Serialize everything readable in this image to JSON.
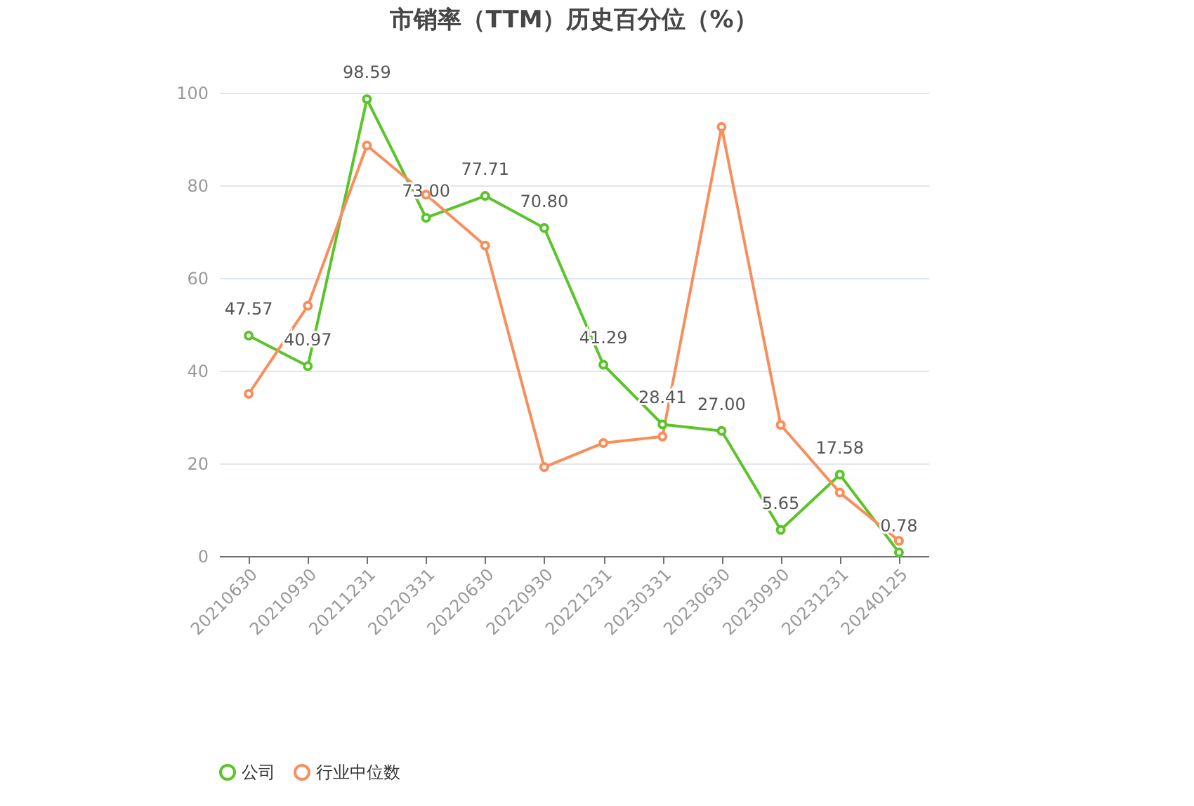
{
  "chart_data": {
    "type": "line",
    "title": "市销率（TTM）历史百分位（%）",
    "categories": [
      "20210630",
      "20210930",
      "20211231",
      "20220331",
      "20220630",
      "20220930",
      "20221231",
      "20230331",
      "20230630",
      "20230930",
      "20231231",
      "20240125"
    ],
    "series": [
      {
        "name": "公司",
        "color": "#5ac42a",
        "values": [
          47.57,
          40.97,
          98.59,
          73.0,
          77.71,
          70.8,
          41.29,
          28.41,
          27.0,
          5.65,
          17.58,
          0.78
        ],
        "value_labels": [
          "47.57",
          "40.97",
          "98.59",
          "73.00",
          "77.71",
          "70.80",
          "41.29",
          "28.41",
          "27.00",
          "5.65",
          "17.58",
          "0.78"
        ]
      },
      {
        "name": "行业中位数",
        "color": "#f88e5c",
        "values": [
          35.0,
          54.0,
          88.6,
          78.0,
          67.0,
          19.2,
          24.4,
          25.8,
          92.6,
          28.3,
          13.7,
          3.3
        ]
      }
    ],
    "ylim": [
      0,
      100
    ],
    "yticks": [
      0,
      20,
      40,
      60,
      80,
      100
    ],
    "grid": "y",
    "legend": "bottom",
    "marker": "circle",
    "line_style": "solid"
  }
}
